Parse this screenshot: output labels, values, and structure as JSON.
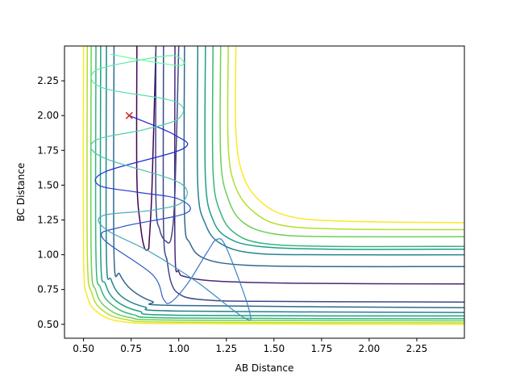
{
  "chart_data": {
    "type": "line",
    "xlabel": "AB Distance",
    "ylabel": "BC Distance",
    "xlim": [
      0.4,
      2.5
    ],
    "ylim": [
      0.4,
      2.5
    ],
    "xticks": [
      "0.50",
      "0.75",
      "1.00",
      "1.25",
      "1.50",
      "1.75",
      "2.00",
      "2.25"
    ],
    "yticks": [
      "0.50",
      "0.75",
      "1.00",
      "1.25",
      "1.50",
      "1.75",
      "2.00",
      "2.25"
    ],
    "grid": false,
    "contours": [
      {
        "color": "#fde725",
        "points": [
          [
            0.5,
            2.5
          ],
          [
            0.5,
            1.0
          ],
          [
            0.52,
            0.7
          ],
          [
            0.58,
            0.58
          ],
          [
            0.7,
            0.52
          ],
          [
            1.0,
            0.505
          ],
          [
            2.5,
            0.5
          ]
        ]
      },
      {
        "color": "#b5de2b",
        "points": [
          [
            0.52,
            2.5
          ],
          [
            0.52,
            1.0
          ],
          [
            0.545,
            0.72
          ],
          [
            0.6,
            0.6
          ],
          [
            0.72,
            0.535
          ],
          [
            1.0,
            0.515
          ],
          [
            2.5,
            0.51
          ]
        ]
      },
      {
        "color": "#6ece58",
        "points": [
          [
            0.54,
            2.5
          ],
          [
            0.54,
            1.0
          ],
          [
            0.565,
            0.74
          ],
          [
            0.62,
            0.62
          ],
          [
            0.74,
            0.55
          ],
          [
            1.0,
            0.53
          ],
          [
            2.5,
            0.525
          ]
        ]
      },
      {
        "color": "#35b779",
        "points": [
          [
            0.565,
            2.5
          ],
          [
            0.565,
            1.0
          ],
          [
            0.59,
            0.76
          ],
          [
            0.645,
            0.645
          ],
          [
            0.76,
            0.57
          ],
          [
            1.0,
            0.545
          ],
          [
            2.5,
            0.54
          ]
        ]
      },
      {
        "color": "#1f9e89",
        "points": [
          [
            0.59,
            2.5
          ],
          [
            0.59,
            1.0
          ],
          [
            0.615,
            0.79
          ],
          [
            0.67,
            0.67
          ],
          [
            0.79,
            0.595
          ],
          [
            1.0,
            0.565
          ],
          [
            2.5,
            0.56
          ]
        ]
      },
      {
        "color": "#26828e",
        "points": [
          [
            0.62,
            2.5
          ],
          [
            0.62,
            1.0
          ],
          [
            0.645,
            0.82
          ],
          [
            0.7,
            0.7
          ],
          [
            0.82,
            0.625
          ],
          [
            1.0,
            0.595
          ],
          [
            2.5,
            0.585
          ]
        ]
      },
      {
        "color": "#31688e",
        "points": [
          [
            0.66,
            2.5
          ],
          [
            0.66,
            1.0
          ],
          [
            0.69,
            0.86
          ],
          [
            0.75,
            0.75
          ],
          [
            0.86,
            0.665
          ],
          [
            1.0,
            0.635
          ],
          [
            2.5,
            0.62
          ]
        ]
      },
      {
        "color": "#3e4989",
        "points": [
          [
            0.92,
            2.5
          ],
          [
            0.92,
            1.2
          ],
          [
            0.94,
            0.95
          ],
          [
            0.96,
            0.8
          ],
          [
            1.0,
            0.72
          ],
          [
            1.1,
            0.68
          ],
          [
            1.4,
            0.665
          ],
          [
            2.5,
            0.66
          ]
        ]
      },
      {
        "color": "#482878",
        "points": [
          [
            0.98,
            2.5
          ],
          [
            0.98,
            1.05
          ],
          [
            1.0,
            0.88
          ],
          [
            1.04,
            0.84
          ],
          [
            1.2,
            0.81
          ],
          [
            1.6,
            0.795
          ],
          [
            2.5,
            0.79
          ]
        ]
      },
      {
        "color": "#35b779",
        "points": [
          [
            1.18,
            2.5
          ],
          [
            1.18,
            1.6
          ],
          [
            1.22,
            1.3
          ],
          [
            1.3,
            1.15
          ],
          [
            1.45,
            1.08
          ],
          [
            1.8,
            1.06
          ],
          [
            2.5,
            1.06
          ]
        ]
      },
      {
        "color": "#6ece58",
        "points": [
          [
            1.22,
            2.5
          ],
          [
            1.22,
            1.7
          ],
          [
            1.26,
            1.4
          ],
          [
            1.34,
            1.23
          ],
          [
            1.5,
            1.15
          ],
          [
            1.8,
            1.13
          ],
          [
            2.5,
            1.13
          ]
        ]
      },
      {
        "color": "#b5de2b",
        "points": [
          [
            1.26,
            2.5
          ],
          [
            1.26,
            1.78
          ],
          [
            1.3,
            1.48
          ],
          [
            1.4,
            1.3
          ],
          [
            1.55,
            1.21
          ],
          [
            1.85,
            1.185
          ],
          [
            2.5,
            1.18
          ]
        ]
      },
      {
        "color": "#fde725",
        "points": [
          [
            1.3,
            2.5
          ],
          [
            1.3,
            1.88
          ],
          [
            1.34,
            1.56
          ],
          [
            1.44,
            1.37
          ],
          [
            1.6,
            1.27
          ],
          [
            1.9,
            1.24
          ],
          [
            2.5,
            1.23
          ]
        ]
      },
      {
        "color": "#26828e",
        "points": [
          [
            1.1,
            2.5
          ],
          [
            1.1,
            1.5
          ],
          [
            1.14,
            1.22
          ],
          [
            1.22,
            1.08
          ],
          [
            1.4,
            1.01
          ],
          [
            1.8,
            1.0
          ],
          [
            2.5,
            1.0
          ]
        ]
      },
      {
        "color": "#31688e",
        "points": [
          [
            1.03,
            2.5
          ],
          [
            1.03,
            1.3
          ],
          [
            1.06,
            1.08
          ],
          [
            1.14,
            0.97
          ],
          [
            1.35,
            0.925
          ],
          [
            1.8,
            0.915
          ],
          [
            2.5,
            0.915
          ]
        ]
      },
      {
        "color": "#1f9e89",
        "points": [
          [
            1.14,
            2.5
          ],
          [
            1.14,
            1.55
          ],
          [
            1.18,
            1.25
          ],
          [
            1.26,
            1.12
          ],
          [
            1.42,
            1.06
          ],
          [
            1.8,
            1.04
          ],
          [
            2.5,
            1.04
          ]
        ]
      },
      {
        "color": "#440154",
        "points": [
          [
            0.78,
            2.5
          ],
          [
            0.78,
            1.55
          ],
          [
            0.8,
            1.2
          ],
          [
            0.82,
            1.05
          ],
          [
            0.84,
            1.04
          ],
          [
            0.845,
            1.1
          ],
          [
            0.86,
            1.5
          ],
          [
            0.88,
            2.5
          ]
        ]
      },
      {
        "color": "#3e4989",
        "points": [
          [
            0.88,
            2.5
          ],
          [
            0.88,
            1.4
          ],
          [
            0.9,
            1.18
          ],
          [
            0.93,
            1.1
          ],
          [
            0.96,
            1.12
          ],
          [
            0.98,
            1.45
          ],
          [
            1.0,
            2.5
          ]
        ]
      }
    ],
    "trajectory": {
      "start": [
        0.74,
        2.0
      ],
      "color_start": "#5fffa0",
      "color_end": "#1a1fd6",
      "points": [
        [
          0.74,
          2.0
        ],
        [
          0.98,
          1.86
        ],
        [
          1.02,
          1.76
        ],
        [
          0.62,
          1.6
        ],
        [
          0.58,
          1.5
        ],
        [
          0.78,
          1.45
        ],
        [
          1.0,
          1.4
        ],
        [
          1.04,
          1.3
        ],
        [
          0.7,
          1.2
        ],
        [
          0.6,
          1.12
        ],
        [
          0.86,
          0.86
        ],
        [
          0.92,
          0.68
        ],
        [
          0.96,
          0.66
        ],
        [
          1.05,
          0.8
        ],
        [
          1.15,
          1.02
        ],
        [
          1.2,
          1.11
        ],
        [
          1.25,
          1.05
        ],
        [
          1.37,
          0.6
        ],
        [
          1.34,
          0.55
        ],
        [
          1.1,
          0.8
        ],
        [
          0.85,
          1.02
        ],
        [
          0.62,
          1.18
        ],
        [
          0.6,
          1.28
        ],
        [
          0.86,
          1.32
        ],
        [
          1.02,
          1.38
        ],
        [
          1.0,
          1.52
        ],
        [
          0.6,
          1.7
        ],
        [
          0.56,
          1.82
        ],
        [
          0.82,
          1.9
        ],
        [
          1.0,
          1.98
        ],
        [
          0.98,
          2.1
        ],
        [
          0.6,
          2.2
        ],
        [
          0.56,
          2.32
        ],
        [
          0.8,
          2.4
        ],
        [
          0.98,
          2.43
        ],
        [
          1.0,
          2.36
        ],
        [
          0.64,
          2.44
        ]
      ]
    },
    "marker": {
      "label": "x",
      "x": 0.74,
      "y": 2.0,
      "color": "#d62728"
    }
  }
}
